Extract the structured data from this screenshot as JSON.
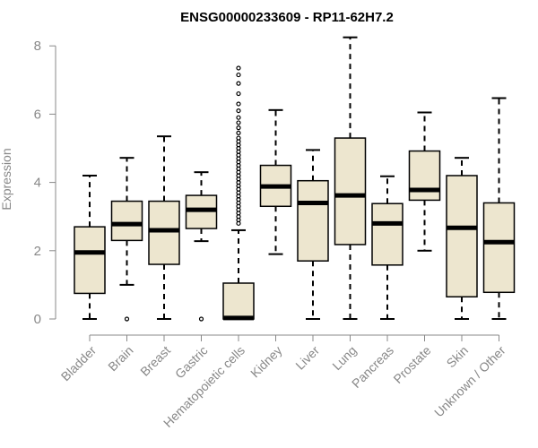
{
  "chart_data": {
    "type": "boxplot",
    "title": "ENSG00000233609 - RP11-62H7.2",
    "ylabel": "Expression",
    "xlabel": "",
    "ylim": [
      0,
      8.3
    ],
    "yticks": [
      0,
      2,
      4,
      6,
      8
    ],
    "grid": false,
    "colors": {
      "box_fill": "#ede6cf",
      "stroke": "#000000",
      "axis": "#888888",
      "text": "#888888"
    },
    "categories": [
      "Bladder",
      "Brain",
      "Breast",
      "Gastric",
      "Hematopoietic cells",
      "Kidney",
      "Liver",
      "Lung",
      "Pancreas",
      "Prostate",
      "Skin",
      "Unknown / Other"
    ],
    "boxes": [
      {
        "name": "Bladder",
        "min": 0,
        "q1": 0.75,
        "median": 1.95,
        "q3": 2.7,
        "max": 4.2,
        "outliers": []
      },
      {
        "name": "Brain",
        "min": 1.0,
        "q1": 2.3,
        "median": 2.78,
        "q3": 3.45,
        "max": 4.72,
        "outliers": [
          0
        ]
      },
      {
        "name": "Breast",
        "min": 0,
        "q1": 1.6,
        "median": 2.6,
        "q3": 3.45,
        "max": 5.35,
        "outliers": []
      },
      {
        "name": "Gastric",
        "min": 2.28,
        "q1": 2.65,
        "median": 3.2,
        "q3": 3.62,
        "max": 4.3,
        "outliers": [
          0
        ]
      },
      {
        "name": "Hematopoietic cells",
        "min": 0,
        "q1": 0,
        "median": 0.03,
        "q3": 1.05,
        "max": 2.6,
        "outliers": [
          2.8,
          2.9,
          3.0,
          3.1,
          3.2,
          3.3,
          3.4,
          3.5,
          3.6,
          3.7,
          3.8,
          3.9,
          4.0,
          4.1,
          4.2,
          4.3,
          4.4,
          4.5,
          4.6,
          4.7,
          4.8,
          4.9,
          5.0,
          5.1,
          5.2,
          5.3,
          5.45,
          5.6,
          5.75,
          5.9,
          6.1,
          6.3,
          6.6,
          6.9,
          7.15,
          7.35
        ]
      },
      {
        "name": "Kidney",
        "min": 1.9,
        "q1": 3.3,
        "median": 3.88,
        "q3": 4.5,
        "max": 6.12,
        "outliers": []
      },
      {
        "name": "Liver",
        "min": 0,
        "q1": 1.7,
        "median": 3.4,
        "q3": 4.05,
        "max": 4.95,
        "outliers": []
      },
      {
        "name": "Lung",
        "min": 0,
        "q1": 2.18,
        "median": 3.62,
        "q3": 5.3,
        "max": 8.25,
        "outliers": []
      },
      {
        "name": "Pancreas",
        "min": 0,
        "q1": 1.58,
        "median": 2.8,
        "q3": 3.38,
        "max": 4.18,
        "outliers": []
      },
      {
        "name": "Prostate",
        "min": 2.0,
        "q1": 3.48,
        "median": 3.78,
        "q3": 4.92,
        "max": 6.05,
        "outliers": []
      },
      {
        "name": "Skin",
        "min": 0,
        "q1": 0.65,
        "median": 2.67,
        "q3": 4.2,
        "max": 4.72,
        "outliers": []
      },
      {
        "name": "Unknown / Other",
        "min": 0,
        "q1": 0.78,
        "median": 2.25,
        "q3": 3.4,
        "max": 6.47,
        "outliers": []
      }
    ]
  }
}
